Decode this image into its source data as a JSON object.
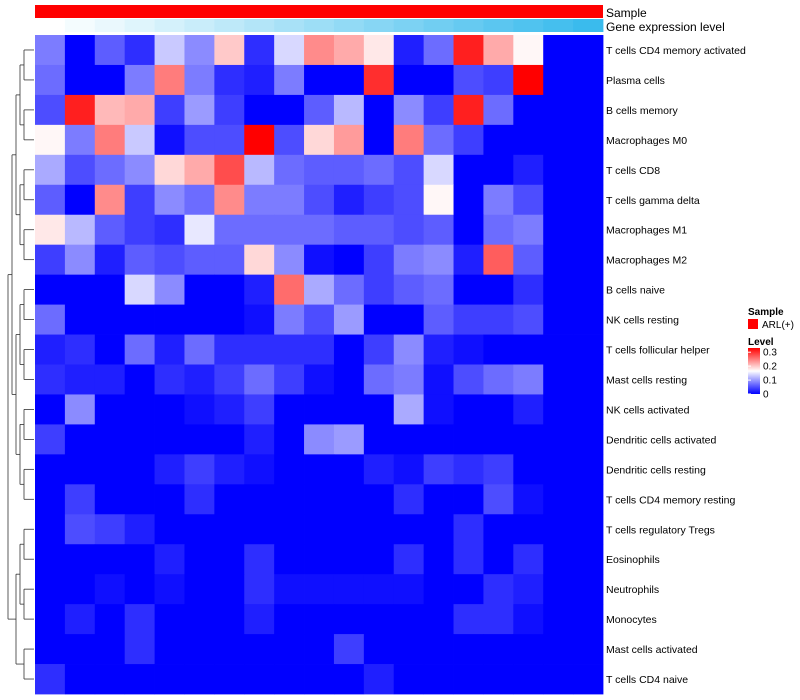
{
  "chart_data": {
    "type": "heatmap",
    "title": "",
    "rows": [
      "T cells CD4 memory activated",
      "Plasma cells",
      "B cells memory",
      "Macrophages M0",
      "T cells CD8",
      "T cells gamma delta",
      "Macrophages M1",
      "Macrophages M2",
      "B cells naive",
      "NK cells resting",
      "T cells follicular helper",
      "Mast cells resting",
      "NK cells activated",
      "Dendritic cells activated",
      "Dendritic cells resting",
      "T cells CD4 memory resting",
      "T cells regulatory  Tregs",
      "Eosinophils",
      "Neutrophils",
      "Monocytes",
      "Mast cells activated",
      "T cells CD4 naive"
    ],
    "n_columns": 19,
    "values": [
      [
        0.08,
        0.0,
        0.06,
        0.03,
        0.13,
        0.09,
        0.2,
        0.03,
        0.14,
        0.24,
        0.22,
        0.18,
        0.02,
        0.07,
        0.31,
        0.22,
        0.17,
        null,
        null
      ],
      [
        0.07,
        0.0,
        0.0,
        0.08,
        0.25,
        0.08,
        0.03,
        0.02,
        0.08,
        0.0,
        0.0,
        0.3,
        0.0,
        0.0,
        0.05,
        0.04,
        0.33,
        null,
        null
      ],
      [
        0.05,
        0.31,
        0.21,
        0.22,
        0.04,
        0.1,
        0.04,
        0.0,
        0.0,
        0.06,
        0.12,
        0.0,
        0.09,
        0.04,
        0.31,
        0.07,
        0.0,
        null,
        null
      ],
      [
        0.17,
        0.08,
        0.25,
        0.13,
        0.01,
        0.05,
        0.05,
        0.33,
        0.05,
        0.19,
        0.23,
        0.0,
        0.25,
        0.07,
        0.04,
        0.0,
        0.0,
        null,
        null
      ],
      [
        0.11,
        0.05,
        0.07,
        0.09,
        0.19,
        0.22,
        0.28,
        0.12,
        0.07,
        0.06,
        0.06,
        0.07,
        0.05,
        0.14,
        0.0,
        0.0,
        0.02,
        null,
        null
      ],
      [
        0.06,
        0.0,
        0.24,
        0.04,
        0.09,
        0.07,
        0.24,
        0.08,
        0.08,
        0.05,
        0.02,
        0.04,
        0.05,
        0.17,
        0.0,
        0.08,
        0.05,
        null,
        null
      ],
      [
        0.18,
        0.12,
        0.06,
        0.04,
        0.03,
        0.15,
        0.07,
        0.07,
        0.07,
        0.07,
        0.06,
        0.06,
        0.05,
        0.06,
        0.0,
        0.07,
        0.08,
        null,
        null
      ],
      [
        0.04,
        0.09,
        0.02,
        0.06,
        0.05,
        0.06,
        0.06,
        0.19,
        0.09,
        0.01,
        0.0,
        0.04,
        0.08,
        0.09,
        0.02,
        0.27,
        0.06,
        null,
        null
      ],
      [
        0.0,
        0.0,
        0.0,
        0.14,
        0.09,
        0.0,
        0.0,
        0.02,
        0.26,
        0.11,
        0.07,
        0.04,
        0.06,
        0.07,
        0.0,
        0.0,
        0.03,
        null,
        null
      ],
      [
        0.07,
        0.0,
        0.0,
        0.0,
        0.0,
        0.0,
        0.0,
        0.01,
        0.08,
        0.05,
        0.1,
        0.0,
        0.0,
        0.06,
        0.04,
        0.04,
        0.05,
        null,
        null
      ],
      [
        0.02,
        0.03,
        0.0,
        0.07,
        0.02,
        0.07,
        0.03,
        0.03,
        0.03,
        0.03,
        0.0,
        0.04,
        0.09,
        0.02,
        0.01,
        0.0,
        null,
        null,
        null
      ],
      [
        0.03,
        0.02,
        0.02,
        0.0,
        0.03,
        0.02,
        0.04,
        0.07,
        0.04,
        0.01,
        0.0,
        0.07,
        0.08,
        0.01,
        0.05,
        0.07,
        0.08,
        null,
        null
      ],
      [
        0.0,
        0.09,
        0.0,
        0.0,
        0.0,
        0.01,
        0.02,
        0.04,
        0.0,
        0.0,
        0.0,
        0.0,
        0.11,
        0.01,
        0.0,
        0.0,
        0.02,
        null,
        null
      ],
      [
        0.04,
        0.0,
        0.0,
        0.0,
        0.0,
        0.0,
        0.0,
        0.02,
        0.0,
        0.09,
        0.1,
        0.0,
        0.0,
        0.0,
        0.0,
        0.0,
        0.0,
        null,
        null
      ],
      [
        0.0,
        0.0,
        0.0,
        0.0,
        0.02,
        0.04,
        0.02,
        0.01,
        0.0,
        0.0,
        0.0,
        0.02,
        0.01,
        0.04,
        0.03,
        0.04,
        0.0,
        null,
        null
      ],
      [
        0.0,
        0.04,
        0.0,
        0.0,
        0.0,
        0.03,
        0.0,
        0.0,
        0.0,
        0.0,
        0.0,
        0.0,
        0.03,
        0.0,
        0.0,
        0.05,
        0.01,
        null,
        null
      ],
      [
        0.0,
        0.05,
        0.04,
        0.02,
        0.0,
        0.0,
        0.0,
        0.0,
        0.0,
        0.0,
        0.0,
        0.0,
        0.0,
        0.0,
        0.03,
        0.0,
        0.0,
        null,
        null
      ],
      [
        0.0,
        0.0,
        0.0,
        0.0,
        0.02,
        0.0,
        0.0,
        0.03,
        0.0,
        0.0,
        0.0,
        0.0,
        0.03,
        0.0,
        0.03,
        0.0,
        0.03,
        null,
        null
      ],
      [
        0.0,
        0.0,
        0.01,
        0.0,
        0.01,
        0.0,
        0.0,
        0.03,
        0.01,
        0.01,
        0.01,
        0.01,
        0.01,
        0.0,
        0.0,
        0.03,
        0.02,
        null,
        null
      ],
      [
        0.0,
        0.02,
        0.0,
        0.03,
        0.0,
        0.0,
        0.0,
        0.02,
        0.0,
        0.0,
        0.0,
        0.0,
        0.0,
        0.0,
        0.03,
        0.03,
        0.01,
        null,
        null
      ],
      [
        0.0,
        0.0,
        0.0,
        0.03,
        0.0,
        0.0,
        0.0,
        0.0,
        0.0,
        0.0,
        0.04,
        0.0,
        0.0,
        0.0,
        0.0,
        0.0,
        0.0,
        null,
        null
      ],
      [
        0.03,
        0.0,
        0.0,
        0.0,
        0.0,
        0.0,
        0.0,
        0.0,
        0.0,
        0.0,
        0.0,
        0.02,
        0.0,
        0.0,
        0.0,
        0.0,
        0.0,
        null,
        null
      ]
    ],
    "annotations": [
      {
        "label": "Sample",
        "color": "#ff0000"
      },
      {
        "label": "Gene expression level",
        "colors": [
          "#ffffff",
          "#f4fcfe",
          "#eaf8fd",
          "#dff5fc",
          "#d4f1fb",
          "#c9edfa",
          "#bee9f9",
          "#b3e5f8",
          "#a8e1f7",
          "#9ddef6",
          "#92daf5",
          "#87d6f4",
          "#7cd2f3",
          "#71cef2",
          "#66caf1",
          "#5bc6f0",
          "#50c3ef",
          "#45bfee",
          "#3abbed"
        ]
      }
    ],
    "legend": {
      "sample_title": "Sample",
      "sample_item": "ARL(+)",
      "sample_color": "#ff0000",
      "level_title": "Level",
      "level_ticks": [
        "0.3",
        "0.2",
        "0.1",
        "0"
      ],
      "level_range": [
        0,
        0.33
      ],
      "level_colors": [
        "#0000ff",
        "#ffffff",
        "#ff0000"
      ]
    }
  }
}
